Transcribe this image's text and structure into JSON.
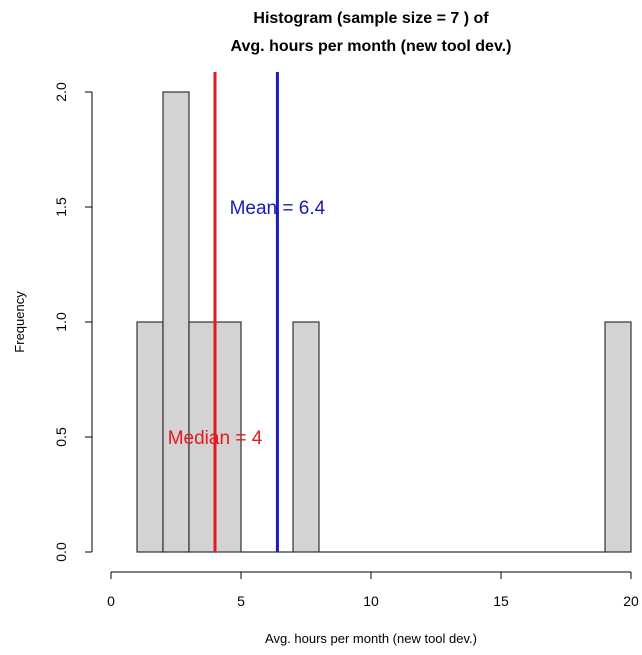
{
  "chart_data": {
    "type": "bar",
    "title_line1": "Histogram (sample size =  7 ) of",
    "title_line2": "Avg. hours per month (new tool dev.)",
    "xlabel": "Avg. hours per month (new tool dev.)",
    "ylabel": "Frequency",
    "xlim": [
      0,
      20
    ],
    "ylim": [
      0,
      2
    ],
    "x_ticks": [
      0,
      5,
      10,
      15,
      20
    ],
    "y_ticks": [
      0.0,
      0.5,
      1.0,
      1.5,
      2.0
    ],
    "x_tick_labels": [
      "0",
      "5",
      "10",
      "15",
      "20"
    ],
    "y_tick_labels": [
      "0.0",
      "0.5",
      "1.0",
      "1.5",
      "2.0"
    ],
    "bins": [
      {
        "x0": 1,
        "x1": 2,
        "count": 1
      },
      {
        "x0": 2,
        "x1": 3,
        "count": 2
      },
      {
        "x0": 3,
        "x1": 4,
        "count": 1
      },
      {
        "x0": 4,
        "x1": 5,
        "count": 1
      },
      {
        "x0": 5,
        "x1": 6,
        "count": 0
      },
      {
        "x0": 6,
        "x1": 7,
        "count": 0
      },
      {
        "x0": 7,
        "x1": 8,
        "count": 1
      },
      {
        "x0": 8,
        "x1": 9,
        "count": 0
      },
      {
        "x0": 9,
        "x1": 10,
        "count": 0
      },
      {
        "x0": 10,
        "x1": 11,
        "count": 0
      },
      {
        "x0": 11,
        "x1": 12,
        "count": 0
      },
      {
        "x0": 12,
        "x1": 13,
        "count": 0
      },
      {
        "x0": 13,
        "x1": 14,
        "count": 0
      },
      {
        "x0": 14,
        "x1": 15,
        "count": 0
      },
      {
        "x0": 15,
        "x1": 16,
        "count": 0
      },
      {
        "x0": 16,
        "x1": 17,
        "count": 0
      },
      {
        "x0": 17,
        "x1": 18,
        "count": 0
      },
      {
        "x0": 18,
        "x1": 19,
        "count": 0
      },
      {
        "x0": 19,
        "x1": 20,
        "count": 1
      }
    ],
    "bar_color": "#d3d3d3",
    "mean": {
      "value": 6.4,
      "label": "Mean = 6.4",
      "color": "#1a1ab8"
    },
    "median": {
      "value": 4,
      "label": "Median = 4",
      "color": "#e31a1c"
    },
    "grid": false,
    "legend": "none"
  }
}
